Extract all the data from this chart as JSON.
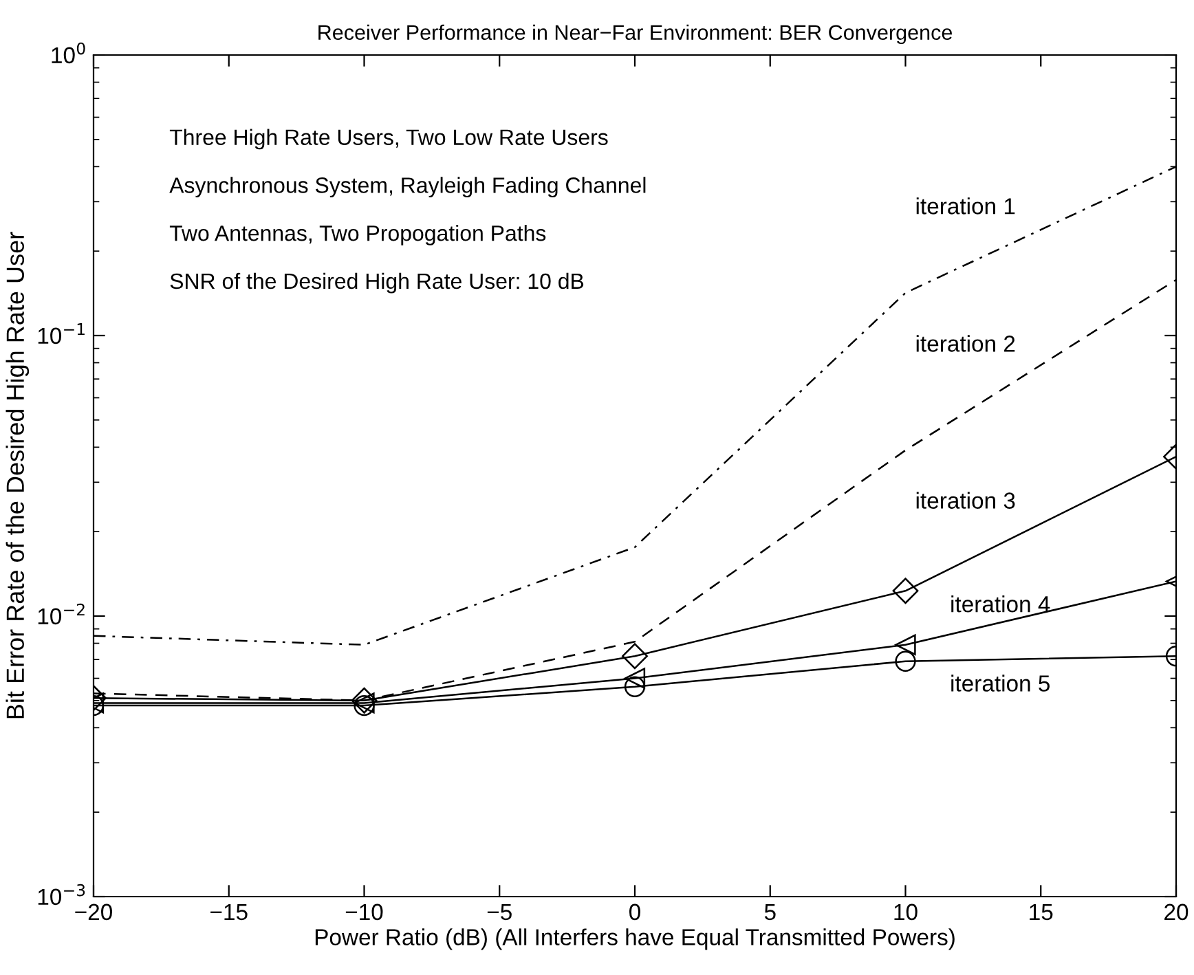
{
  "chart_data": {
    "type": "line",
    "title": "Receiver Performance in Near−Far Environment: BER Convergence",
    "xlabel": "Power Ratio (dB) (All Interfers have Equal Transmitted Powers)",
    "ylabel": "Bit Error Rate of the Desired High Rate User",
    "x": [
      -20,
      -10,
      0,
      10,
      20
    ],
    "series": [
      {
        "name": "iteration 1",
        "color": "#000000",
        "line_style": "dashdot",
        "marker": "none",
        "values": [
          0.0085,
          0.0079,
          0.0176,
          0.142,
          0.4
        ]
      },
      {
        "name": "iteration 2",
        "color": "#000000",
        "line_style": "dashed",
        "marker": "none",
        "values": [
          0.0053,
          0.005,
          0.0081,
          0.039,
          0.158
        ]
      },
      {
        "name": "iteration 3",
        "color": "#000000",
        "line_style": "solid",
        "marker": "diamond",
        "values": [
          0.0051,
          0.005,
          0.0072,
          0.0123,
          0.037
        ]
      },
      {
        "name": "iteration 4",
        "color": "#000000",
        "line_style": "solid",
        "marker": "triangle",
        "values": [
          0.0049,
          0.0049,
          0.006,
          0.0079,
          0.0133
        ]
      },
      {
        "name": "iteration 5",
        "color": "#000000",
        "line_style": "solid",
        "marker": "circle",
        "values": [
          0.0048,
          0.0048,
          0.0056,
          0.0069,
          0.0072
        ]
      }
    ],
    "annotations": [
      "Three High Rate Users, Two Low Rate Users",
      "Asynchronous System, Rayleigh Fading Channel",
      "Two Antennas, Two Propogation Paths",
      "SNR of the Desired High Rate User: 10 dB"
    ],
    "log": "y",
    "grid": false,
    "legend": false,
    "xlim": [
      -20,
      20
    ],
    "xticks": [
      {
        "value": -20,
        "label": "−20"
      },
      {
        "value": -15,
        "label": "−15"
      },
      {
        "value": -10,
        "label": "−10"
      },
      {
        "value": -5,
        "label": "−5"
      },
      0,
      5,
      10,
      15,
      20
    ],
    "ylim": [
      0.001,
      1
    ],
    "yticks": [
      {
        "value": 0.001,
        "label": "10$^{−3}$"
      },
      {
        "value": 0.01,
        "label": "10$^{−2}$"
      },
      {
        "value": 0.1,
        "label": "10$^{−1}$"
      },
      {
        "value": 1,
        "label": "10$^{0}$"
      }
    ]
  }
}
